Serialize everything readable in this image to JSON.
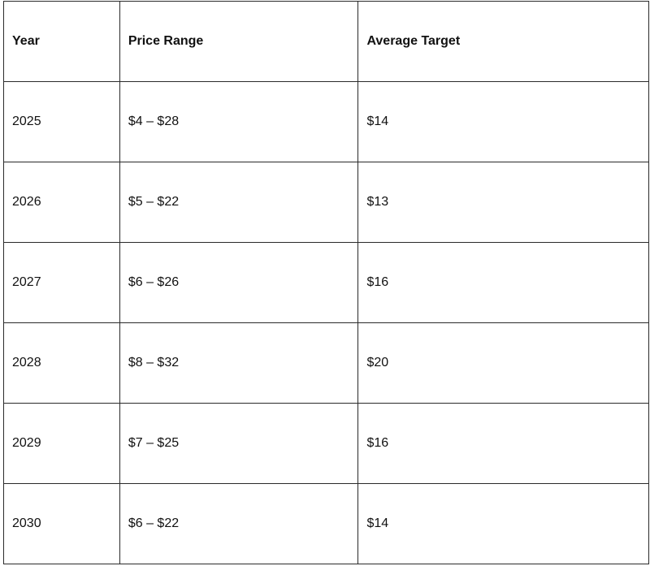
{
  "table": {
    "headers": [
      "Year",
      "Price Range",
      "Average Target"
    ],
    "rows": [
      [
        "2025",
        "$4 – $28",
        "$14"
      ],
      [
        "2026",
        "$5 – $22",
        "$13"
      ],
      [
        "2027",
        "$6 – $26",
        "$16"
      ],
      [
        "2028",
        "$8 – $32",
        "$20"
      ],
      [
        "2029",
        "$7 – $25",
        "$16"
      ],
      [
        "2030",
        "$6 – $22",
        "$14"
      ]
    ]
  }
}
